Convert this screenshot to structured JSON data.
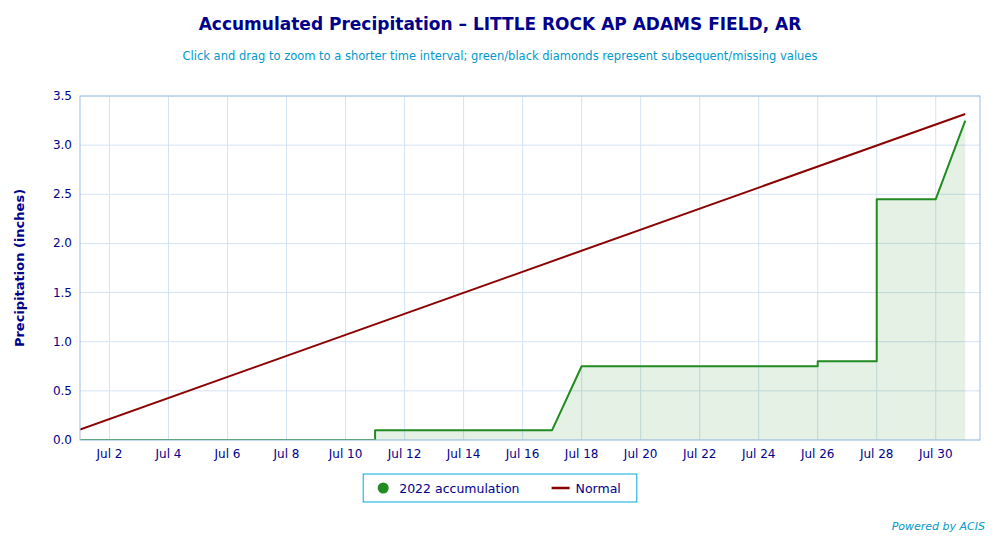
{
  "chart_data": {
    "type": "line",
    "title": "Accumulated Precipitation – LITTLE ROCK AP ADAMS FIELD, AR",
    "subtitle": "Click and drag to zoom to a shorter time interval; green/black diamonds represent subsequent/missing values",
    "y_label": "Precipitation (inches)",
    "annotation": "Powered by ACIS",
    "series": [
      {
        "name": "2022 accumulation",
        "type": "area",
        "color": "#228B22",
        "x": [
          1,
          11,
          11,
          17,
          18,
          26,
          26,
          28,
          28,
          30,
          31
        ],
        "values": [
          0.0,
          0.0,
          0.1,
          0.1,
          0.75,
          0.75,
          0.8,
          0.8,
          2.45,
          2.45,
          3.25
        ]
      },
      {
        "name": "Normal",
        "type": "line",
        "color": "#8B0000",
        "x": [
          1,
          31
        ],
        "values": [
          0.107,
          3.317
        ]
      }
    ],
    "xlim": [
      1,
      31.5
    ],
    "xticks": [
      {
        "value": 2,
        "label": "Jul 2"
      },
      {
        "value": 4,
        "label": "Jul 4"
      },
      {
        "value": 6,
        "label": "Jul 6"
      },
      {
        "value": 8,
        "label": "Jul 8"
      },
      {
        "value": 10,
        "label": "Jul 10"
      },
      {
        "value": 12,
        "label": "Jul 12"
      },
      {
        "value": 14,
        "label": "Jul 14"
      },
      {
        "value": 16,
        "label": "Jul 16"
      },
      {
        "value": 18,
        "label": "Jul 18"
      },
      {
        "value": 20,
        "label": "Jul 20"
      },
      {
        "value": 22,
        "label": "Jul 22"
      },
      {
        "value": 24,
        "label": "Jul 24"
      },
      {
        "value": 26,
        "label": "Jul 26"
      },
      {
        "value": 28,
        "label": "Jul 28"
      },
      {
        "value": 30,
        "label": "Jul 30"
      }
    ],
    "ylim": [
      0,
      3.5
    ],
    "yticks": [
      {
        "value": 0,
        "label": "0.0"
      },
      0.5,
      {
        "value": 1,
        "label": "1.0"
      },
      1.5,
      {
        "value": 2,
        "label": "2.0"
      },
      2.5,
      {
        "value": 3,
        "label": "3.0"
      },
      3.5
    ],
    "grid": true,
    "legend": "bottom"
  }
}
